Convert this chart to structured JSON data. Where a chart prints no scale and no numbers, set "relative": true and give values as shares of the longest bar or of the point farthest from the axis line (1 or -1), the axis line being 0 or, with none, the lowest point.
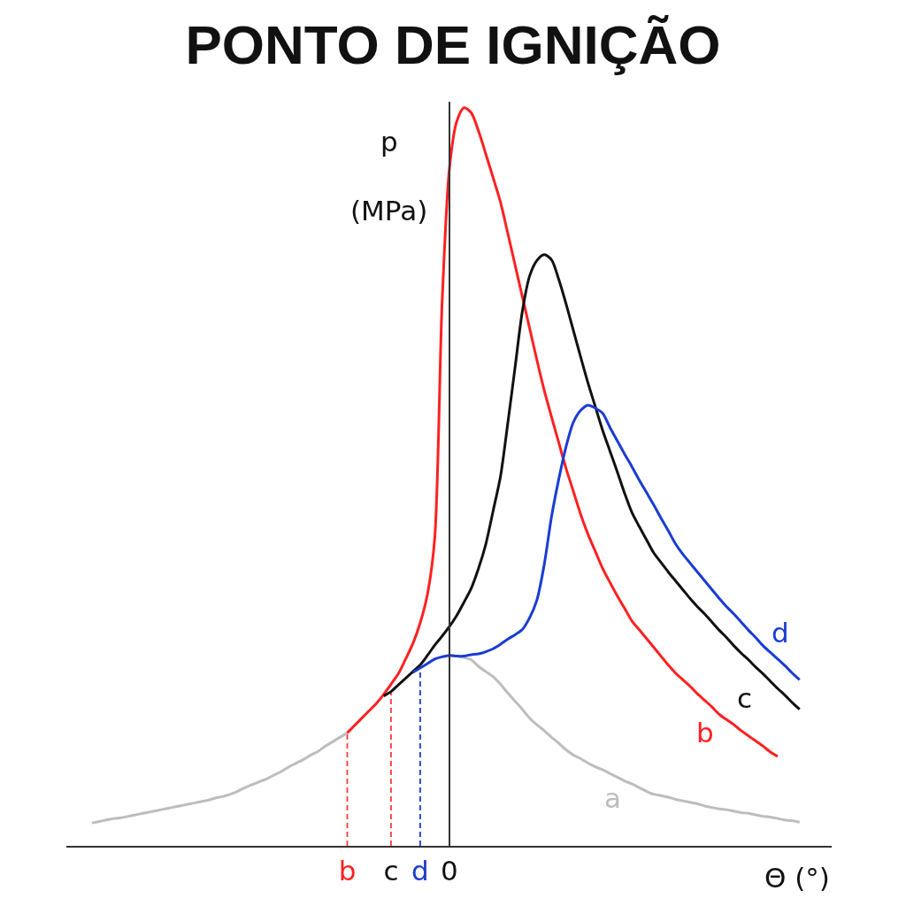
{
  "chart_data": {
    "type": "line",
    "title": "PONTO DE IGNIÇÃO",
    "xlabel": "Θ (°)",
    "ylabel": "p\n(MPa)",
    "relative": true,
    "categories": [
      null,
      null,
      null,
      null,
      null,
      null,
      null,
      null,
      null,
      null,
      null,
      null,
      null,
      null,
      null,
      null,
      null,
      null,
      null,
      null,
      null,
      null,
      null,
      null,
      null,
      null,
      null,
      null,
      null,
      null,
      null,
      null,
      null,
      null,
      null,
      "b",
      null,
      null,
      null,
      null,
      null,
      "c",
      null,
      null,
      null,
      "d",
      null,
      null,
      null,
      "0",
      null,
      null,
      null,
      null,
      null,
      null,
      null,
      null,
      null,
      null,
      null,
      null,
      null,
      null,
      null,
      null,
      null,
      null,
      null,
      null,
      null,
      null,
      null,
      null,
      null,
      null,
      null,
      null,
      null,
      null,
      null,
      null,
      null,
      null,
      null,
      null,
      null,
      null,
      null,
      null,
      null,
      null,
      null,
      null,
      null,
      null,
      null,
      null
    ],
    "ref_lines": [
      {
        "axis": "x",
        "value": "b",
        "color": "#ff3b3b",
        "line_style": "dashed"
      },
      {
        "axis": "x",
        "value": "c",
        "color": "#ff3b3b",
        "line_style": "dashed"
      },
      {
        "axis": "x",
        "value": "d",
        "color": "#1a3cd4",
        "line_style": "dashed"
      }
    ],
    "series": [
      {
        "name": "a",
        "color": "#bdbdbd",
        "values": [
          0.031,
          0.033,
          0.035,
          0.037,
          0.038,
          0.04,
          0.042,
          0.044,
          0.046,
          0.048,
          0.05,
          0.052,
          0.054,
          0.056,
          0.058,
          0.06,
          0.062,
          0.065,
          0.067,
          0.07,
          0.074,
          0.079,
          0.083,
          0.087,
          0.091,
          0.096,
          0.101,
          0.107,
          0.112,
          0.117,
          0.123,
          0.128,
          0.135,
          0.141,
          0.147,
          0.153,
          null,
          null,
          null,
          null,
          null,
          null,
          null,
          null,
          null,
          null,
          null,
          null,
          null,
          0.258,
          0.257,
          0.255,
          0.252,
          0.243,
          0.236,
          0.229,
          0.219,
          0.207,
          0.196,
          0.185,
          0.173,
          0.164,
          0.156,
          0.147,
          0.139,
          0.13,
          0.123,
          0.118,
          0.112,
          0.107,
          0.103,
          0.098,
          0.093,
          0.088,
          0.084,
          0.079,
          0.074,
          0.07,
          0.068,
          0.066,
          0.063,
          0.061,
          0.059,
          0.057,
          0.054,
          0.052,
          0.05,
          0.049,
          0.047,
          0.045,
          0.044,
          0.042,
          0.04,
          0.039,
          0.037,
          0.035,
          0.034,
          0.032
        ]
      },
      {
        "name": "b",
        "color": "#ff2020",
        "values": [
          null,
          null,
          null,
          null,
          null,
          null,
          null,
          null,
          null,
          null,
          null,
          null,
          null,
          null,
          null,
          null,
          null,
          null,
          null,
          null,
          null,
          null,
          null,
          null,
          null,
          null,
          null,
          null,
          null,
          null,
          null,
          null,
          null,
          null,
          null,
          0.153,
          0.163,
          0.173,
          0.183,
          0.193,
          0.205,
          0.219,
          0.233,
          0.253,
          0.274,
          0.302,
          0.341,
          0.418,
          0.735,
          0.917,
          0.981,
          1,
          0.993,
          0.968,
          0.937,
          0.905,
          0.872,
          0.83,
          0.787,
          0.744,
          0.701,
          0.658,
          0.617,
          0.581,
          0.546,
          0.511,
          0.48,
          0.449,
          0.422,
          0.399,
          0.376,
          0.357,
          0.339,
          0.322,
          0.305,
          0.293,
          0.281,
          0.269,
          0.257,
          0.245,
          0.234,
          0.225,
          0.216,
          0.206,
          0.197,
          0.188,
          0.178,
          0.171,
          0.164,
          0.156,
          0.149,
          0.142,
          0.135,
          0.127,
          0.121,
          null,
          null,
          null
        ]
      },
      {
        "name": "c",
        "color": "#111111",
        "values": [
          null,
          null,
          null,
          null,
          null,
          null,
          null,
          null,
          null,
          null,
          null,
          null,
          null,
          null,
          null,
          null,
          null,
          null,
          null,
          null,
          null,
          null,
          null,
          null,
          null,
          null,
          null,
          null,
          null,
          null,
          null,
          null,
          null,
          null,
          null,
          null,
          null,
          null,
          null,
          null,
          0.203,
          0.209,
          0.218,
          0.227,
          0.236,
          0.245,
          0.258,
          0.272,
          0.284,
          0.297,
          0.312,
          0.33,
          0.349,
          0.376,
          0.409,
          0.454,
          0.5,
          0.572,
          0.648,
          0.724,
          0.772,
          0.793,
          0.801,
          0.794,
          0.767,
          0.734,
          0.698,
          0.662,
          0.627,
          0.595,
          0.563,
          0.535,
          0.507,
          0.478,
          0.452,
          0.433,
          0.415,
          0.397,
          0.384,
          0.371,
          0.359,
          0.347,
          0.335,
          0.324,
          0.314,
          0.303,
          0.292,
          0.282,
          0.271,
          0.261,
          0.252,
          0.242,
          0.233,
          0.223,
          0.213,
          0.204,
          0.194,
          0.185
        ]
      },
      {
        "name": "d",
        "color": "#1a3cd4",
        "values": [
          null,
          null,
          null,
          null,
          null,
          null,
          null,
          null,
          null,
          null,
          null,
          null,
          null,
          null,
          null,
          null,
          null,
          null,
          null,
          null,
          null,
          null,
          null,
          null,
          null,
          null,
          null,
          null,
          null,
          null,
          null,
          null,
          null,
          null,
          null,
          null,
          null,
          null,
          null,
          null,
          null,
          null,
          null,
          null,
          0.235,
          0.241,
          0.247,
          0.253,
          0.256,
          0.258,
          0.257,
          0.257,
          0.259,
          0.26,
          0.263,
          0.267,
          0.273,
          0.28,
          0.286,
          0.293,
          0.309,
          0.333,
          0.381,
          0.446,
          0.497,
          0.541,
          0.574,
          0.59,
          0.597,
          0.593,
          0.586,
          0.567,
          0.549,
          0.531,
          0.514,
          0.496,
          0.479,
          0.462,
          0.444,
          0.427,
          0.409,
          0.395,
          0.383,
          0.371,
          0.359,
          0.347,
          0.335,
          0.324,
          0.314,
          0.303,
          0.292,
          0.282,
          0.271,
          0.262,
          0.253,
          0.244,
          0.234,
          0.225
        ]
      }
    ]
  }
}
